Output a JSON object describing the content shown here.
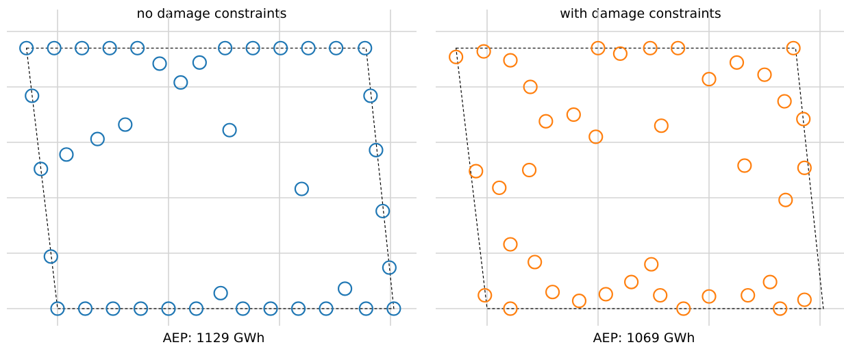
{
  "chart_data": [
    {
      "type": "scatter",
      "title": "no damage constraints",
      "annotation": "AEP: 1129 GWh",
      "color": "#1f77b4",
      "grid": true,
      "boundary": [
        [
          -0.28,
          2.35
        ],
        [
          2.78,
          2.35
        ],
        [
          3.03,
          0
        ],
        [
          0,
          0
        ]
      ],
      "points": [
        [
          -0.28,
          2.35
        ],
        [
          -0.03,
          2.35
        ],
        [
          0.22,
          2.35
        ],
        [
          0.47,
          2.35
        ],
        [
          0.72,
          2.35
        ],
        [
          0.92,
          2.21
        ],
        [
          1.11,
          2.04
        ],
        [
          1.28,
          2.22
        ],
        [
          1.51,
          2.35
        ],
        [
          1.76,
          2.35
        ],
        [
          2.01,
          2.35
        ],
        [
          2.26,
          2.35
        ],
        [
          2.51,
          2.35
        ],
        [
          2.77,
          2.35
        ],
        [
          -0.23,
          1.92
        ],
        [
          2.82,
          1.92
        ],
        [
          -0.15,
          1.26
        ],
        [
          0.08,
          1.39
        ],
        [
          0.36,
          1.53
        ],
        [
          0.61,
          1.66
        ],
        [
          1.55,
          1.61
        ],
        [
          2.87,
          1.43
        ],
        [
          2.2,
          1.08
        ],
        [
          2.93,
          0.88
        ],
        [
          -0.06,
          0.47
        ],
        [
          2.99,
          0.37
        ],
        [
          1.47,
          0.14
        ],
        [
          2.59,
          0.18
        ],
        [
          0.0,
          0.0
        ],
        [
          0.25,
          0.0
        ],
        [
          0.5,
          0.0
        ],
        [
          0.75,
          0.0
        ],
        [
          1.0,
          0.0
        ],
        [
          1.25,
          0.0
        ],
        [
          1.67,
          0.0
        ],
        [
          1.92,
          0.0
        ],
        [
          2.17,
          0.0
        ],
        [
          2.42,
          0.0
        ],
        [
          2.78,
          0.0
        ],
        [
          3.03,
          0.0
        ]
      ]
    },
    {
      "type": "scatter",
      "title": "with damage constraints",
      "annotation": "AEP: 1069 GWh",
      "color": "#ff7f0e",
      "grid": true,
      "boundary": [
        [
          -0.28,
          2.35
        ],
        [
          2.78,
          2.35
        ],
        [
          3.03,
          0
        ],
        [
          0,
          0
        ]
      ],
      "points": [
        [
          -0.28,
          2.27
        ],
        [
          -0.03,
          2.32
        ],
        [
          0.21,
          2.24
        ],
        [
          1.0,
          2.35
        ],
        [
          1.2,
          2.3
        ],
        [
          1.47,
          2.35
        ],
        [
          1.72,
          2.35
        ],
        [
          2.76,
          2.35
        ],
        [
          0.39,
          2.0
        ],
        [
          2.0,
          2.07
        ],
        [
          2.25,
          2.22
        ],
        [
          2.5,
          2.11
        ],
        [
          2.68,
          1.87
        ],
        [
          0.53,
          1.69
        ],
        [
          0.78,
          1.75
        ],
        [
          0.98,
          1.55
        ],
        [
          1.57,
          1.65
        ],
        [
          2.85,
          1.71
        ],
        [
          -0.1,
          1.24
        ],
        [
          0.11,
          1.09
        ],
        [
          0.38,
          1.25
        ],
        [
          2.32,
          1.29
        ],
        [
          2.86,
          1.27
        ],
        [
          2.69,
          0.98
        ],
        [
          0.21,
          0.58
        ],
        [
          0.43,
          0.42
        ],
        [
          1.48,
          0.4
        ],
        [
          1.3,
          0.24
        ],
        [
          2.55,
          0.24
        ],
        [
          -0.02,
          0.12
        ],
        [
          0.59,
          0.15
        ],
        [
          0.83,
          0.07
        ],
        [
          1.07,
          0.13
        ],
        [
          1.56,
          0.12
        ],
        [
          2.0,
          0.11
        ],
        [
          2.35,
          0.12
        ],
        [
          2.86,
          0.08
        ],
        [
          0.21,
          0.0
        ],
        [
          1.77,
          0.0
        ],
        [
          2.64,
          0.0
        ]
      ]
    }
  ]
}
